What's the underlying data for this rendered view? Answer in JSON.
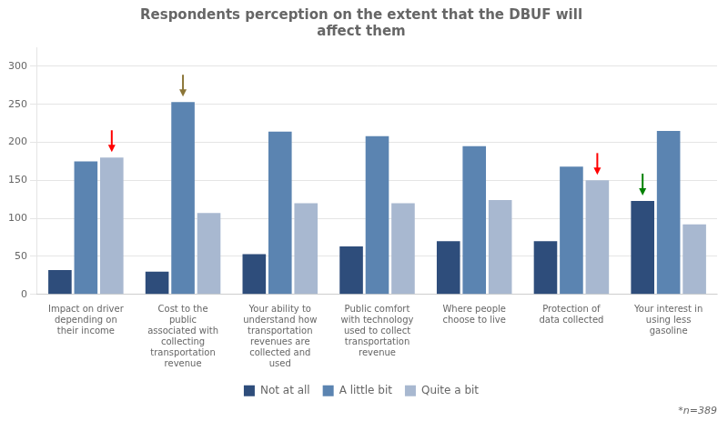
{
  "chart_data": {
    "type": "bar",
    "title": "Respondents perception on the extent that the DBUF will\naffect them",
    "categories": [
      "Impact on driver\ndepending on\ntheir income",
      "Cost to the\npublic\nassociated with\ncollecting\ntransportation\nrevenue",
      "Your ability to\nunderstand how\ntransportation\nrevenues are\ncollected and\nused",
      "Public comfort\nwith technology\nused to collect\ntransportation\nrevenue",
      "Where people\nchoose to live",
      "Protection of\ndata collected",
      "Your interest in\nusing less\ngasoline"
    ],
    "series": [
      {
        "name": "Not at all",
        "color": "#2e4d7b",
        "values": [
          32,
          30,
          53,
          63,
          70,
          70,
          123
        ]
      },
      {
        "name": "A little bit",
        "color": "#5b84b1",
        "values": [
          175,
          253,
          214,
          208,
          195,
          168,
          215
        ]
      },
      {
        "name": "Quite a bit",
        "color": "#a8b8d0",
        "values": [
          180,
          107,
          120,
          120,
          124,
          150,
          92
        ]
      }
    ],
    "ylim": [
      0,
      325
    ],
    "yticks": [
      0,
      50,
      100,
      150,
      200,
      250,
      300
    ],
    "grid": true,
    "legend": "bottom",
    "note": "*n=389",
    "arrows": [
      {
        "series": "Quite a bit",
        "category": "Impact on driver\ndepending on\ntheir income",
        "color": "red"
      },
      {
        "series": "A little bit",
        "category": "Cost to the\npublic\nassociated with\ncollecting\ntransportation\nrevenue",
        "color": "#8b7536"
      },
      {
        "series": "Quite a bit",
        "category": "Protection of\ndata collected",
        "color": "red"
      },
      {
        "series": "Not at all",
        "category": "Your interest in\nusing less\ngasoline",
        "color": "green"
      }
    ]
  }
}
